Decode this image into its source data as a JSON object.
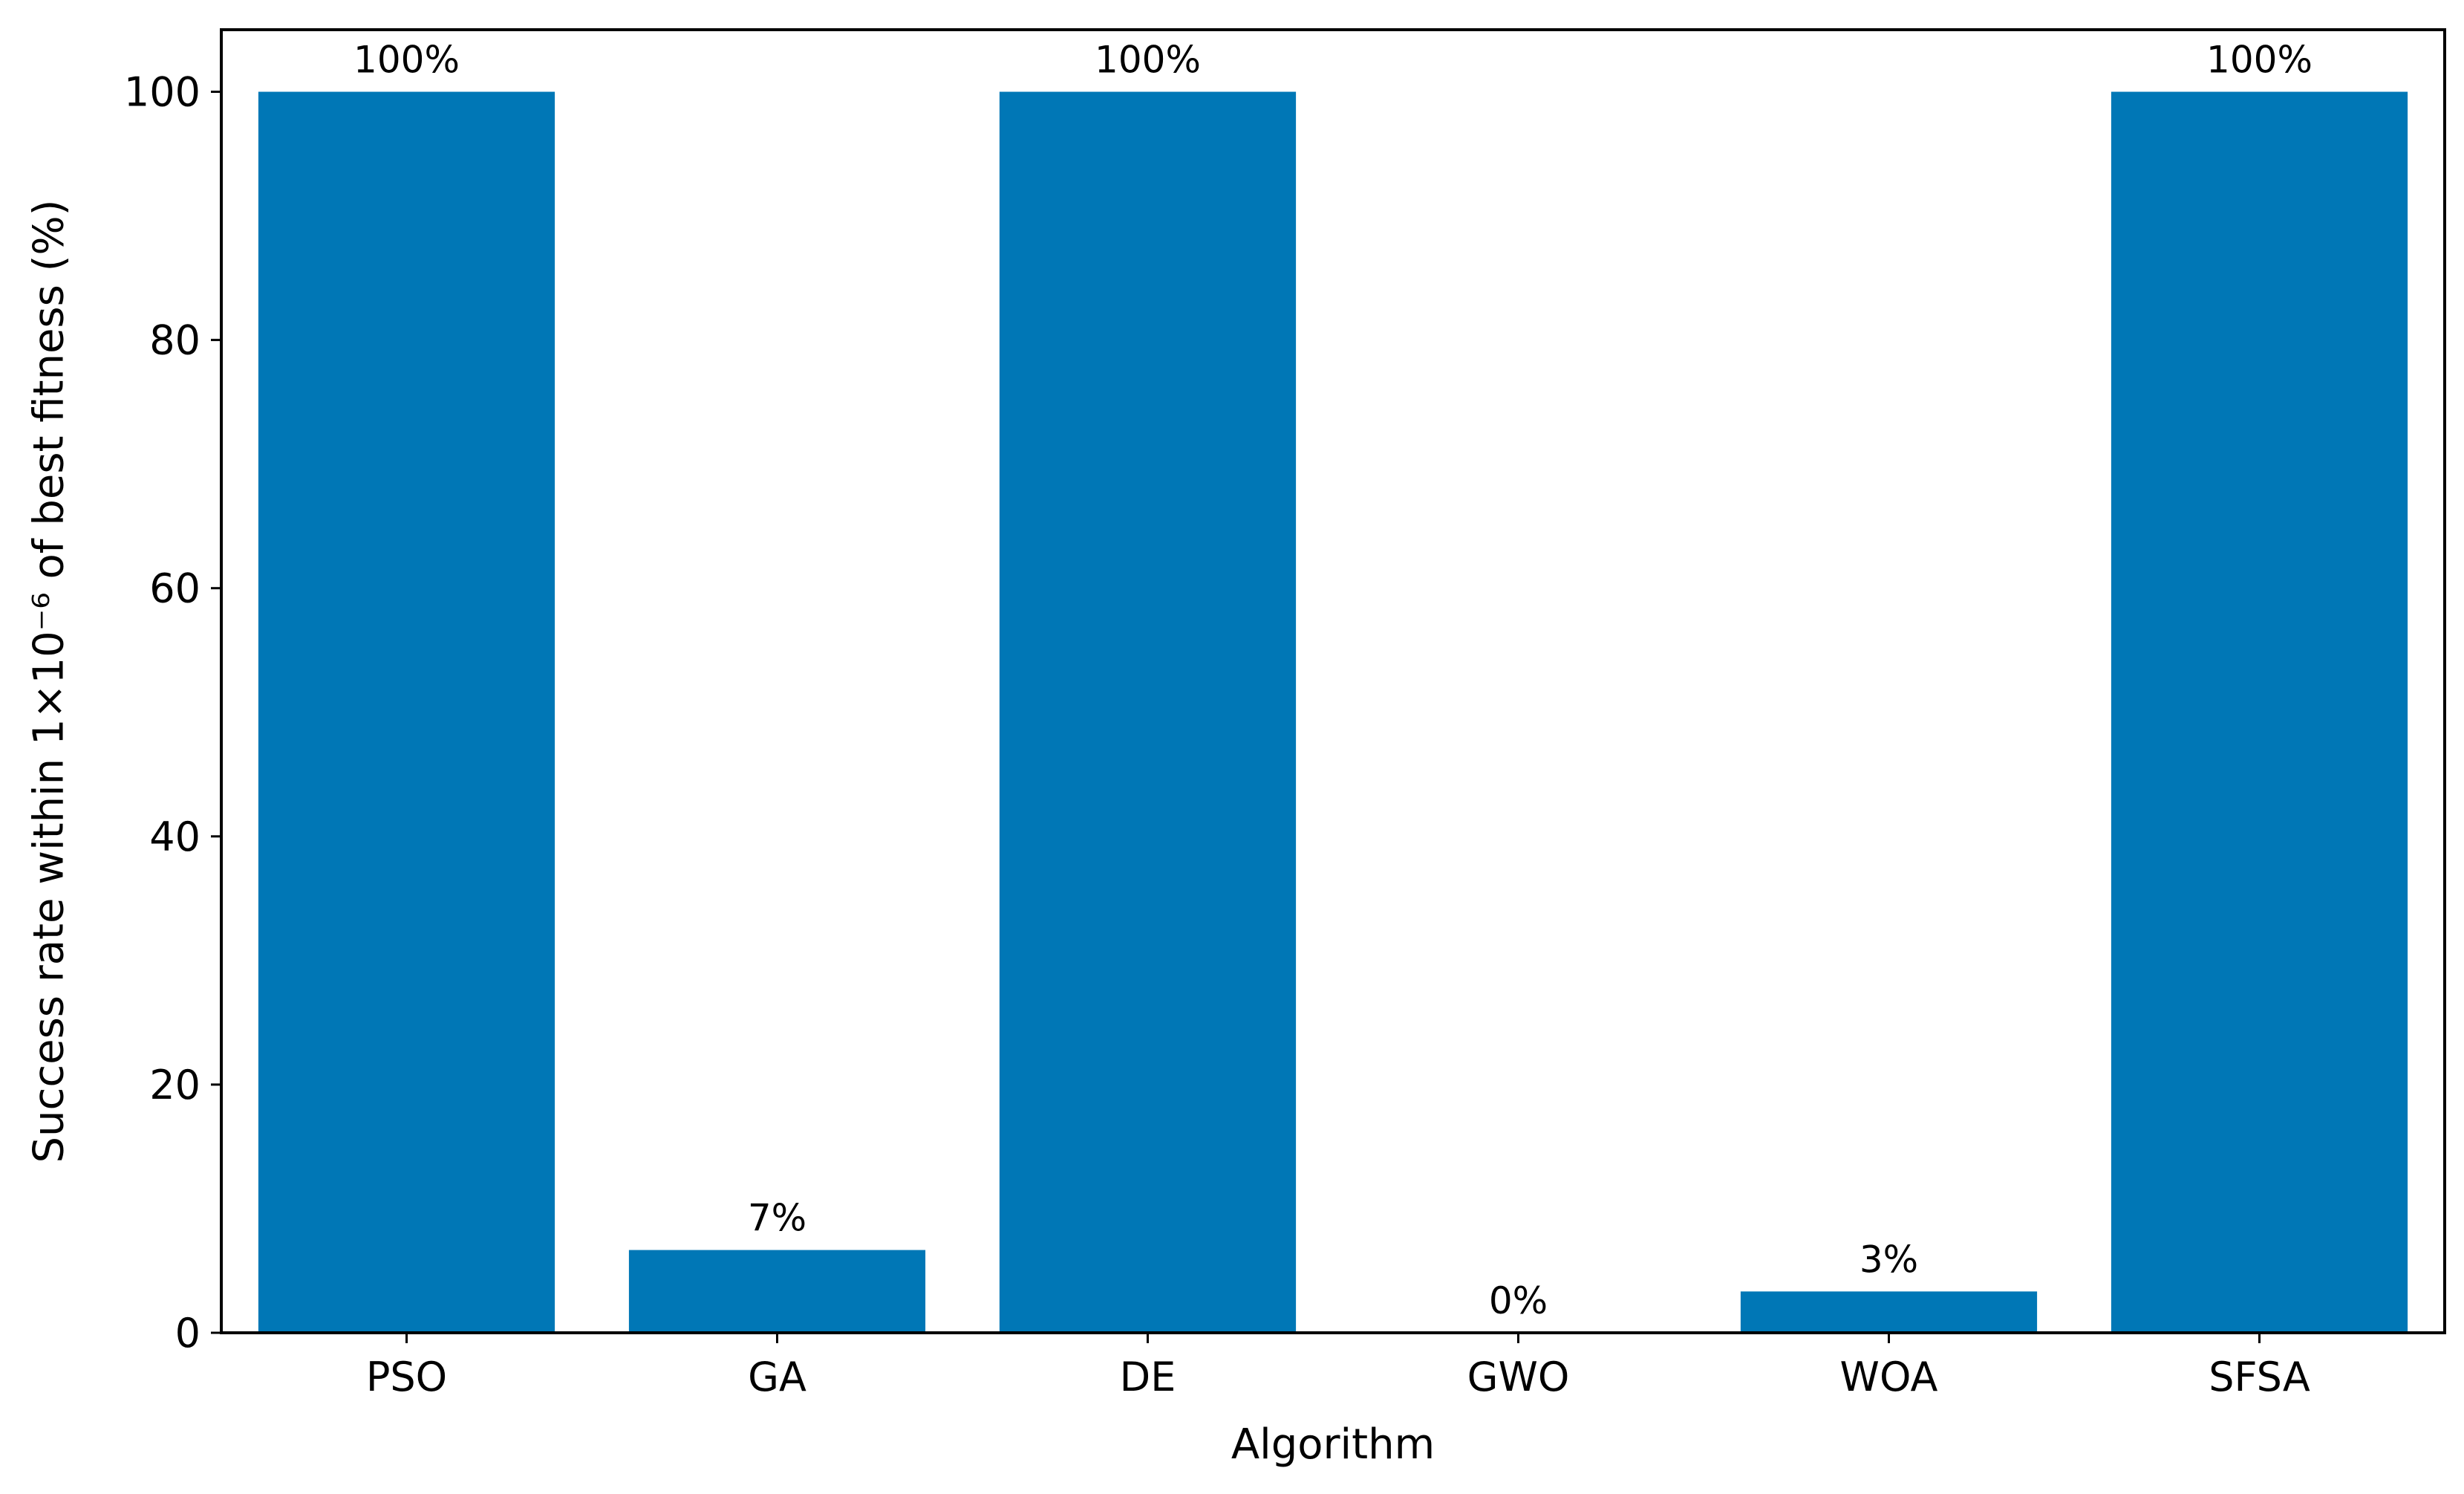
{
  "chart_data": {
    "type": "bar",
    "categories": [
      "PSO",
      "GA",
      "DE",
      "GWO",
      "WOA",
      "SFSA"
    ],
    "values": [
      100,
      6.67,
      100,
      0,
      3.33,
      100
    ],
    "data_labels": [
      "100%",
      "7%",
      "100%",
      "0%",
      "3%",
      "100%"
    ],
    "title": "",
    "xlabel": "Algorithm",
    "ylabel": "Success rate within 1×10⁻⁶ of best fitness (%)",
    "ylim": [
      0,
      105
    ],
    "yticks": [
      0,
      20,
      40,
      60,
      80,
      100
    ],
    "grid": false,
    "legend": "none",
    "bar_color": "#0077b6"
  }
}
